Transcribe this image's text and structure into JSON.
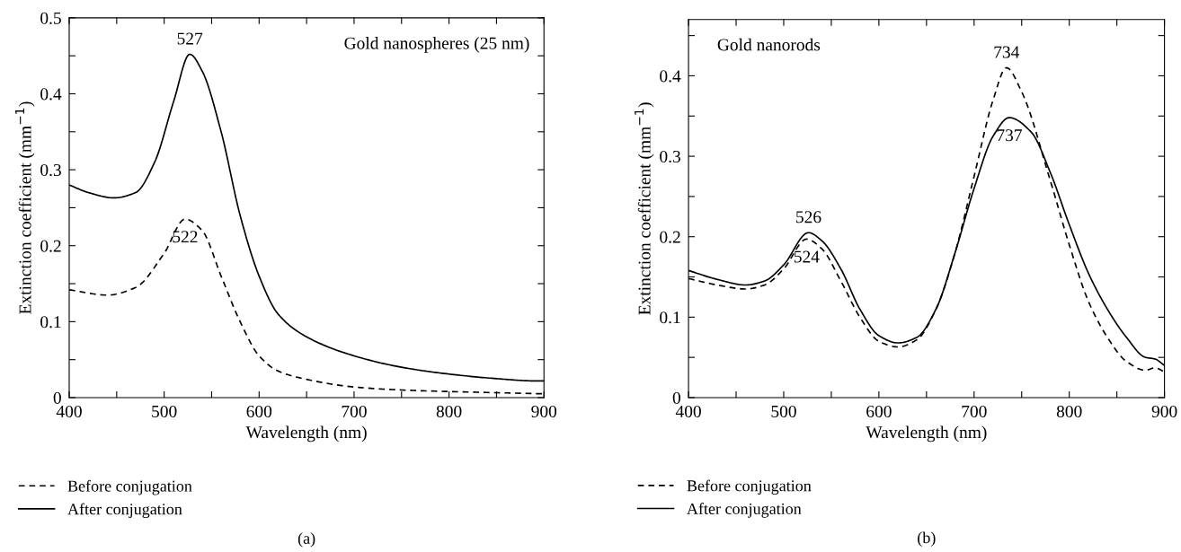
{
  "chart_data": [
    {
      "type": "line",
      "xlabel": "Wavelength (nm)",
      "ylabel": "Extinction coefficient (mm$^{−1}$)",
      "xlim": [
        400,
        900
      ],
      "ylim": [
        0,
        0.5
      ],
      "xticks": [
        400,
        {
          "value": 450,
          "label": null
        },
        500,
        {
          "value": 550,
          "label": null
        },
        600,
        {
          "value": 650,
          "label": null
        },
        700,
        {
          "value": 750,
          "label": null
        },
        800,
        {
          "value": 850,
          "label": null
        },
        900
      ],
      "yticks": [
        0,
        {
          "value": 0.05,
          "label": null
        },
        0.1,
        {
          "value": 0.15,
          "label": null
        },
        0.2,
        {
          "value": 0.25,
          "label": null
        },
        0.3,
        {
          "value": 0.35,
          "label": null
        },
        0.4,
        {
          "value": 0.45,
          "label": null
        },
        0.5
      ],
      "legend": "bottom",
      "grid": false,
      "series": [
        {
          "name": "Before conjugation",
          "color": "#000000",
          "line_style": "dashed",
          "x": [
            400,
            440,
            470,
            500,
            522,
            540,
            560,
            580,
            600,
            620,
            650,
            700,
            750,
            800,
            900
          ],
          "values": [
            0.142,
            0.135,
            0.145,
            0.19,
            0.235,
            0.22,
            0.16,
            0.1,
            0.055,
            0.035,
            0.024,
            0.014,
            0.01,
            0.008,
            0.005
          ]
        },
        {
          "name": "After conjugation",
          "color": "#000000",
          "line_style": "solid",
          "x": [
            400,
            420,
            447,
            470,
            490,
            510,
            527,
            540,
            560,
            580,
            600,
            620,
            650,
            700,
            750,
            800,
            850,
            890,
            900
          ],
          "values": [
            0.28,
            0.27,
            0.263,
            0.27,
            0.31,
            0.39,
            0.452,
            0.43,
            0.35,
            0.24,
            0.16,
            0.11,
            0.08,
            0.055,
            0.04,
            0.031,
            0.025,
            0.022,
            0.022
          ]
        }
      ],
      "annotations": [
        "Gold nanospheres (25 nm)",
        "(a)",
        {
          "text": "527",
          "x": 527,
          "y": 0.452
        },
        {
          "text": "522",
          "x": 522,
          "y": 0.235
        }
      ]
    },
    {
      "type": "line",
      "xlabel": "Wavelength (nm)",
      "ylabel": "Extinction coefficient (mm$^{−1}$)",
      "xlim": [
        400,
        900
      ],
      "ylim": [
        0,
        0.47
      ],
      "xticks": [
        400,
        {
          "value": 450,
          "label": null
        },
        500,
        {
          "value": 550,
          "label": null
        },
        600,
        {
          "value": 650,
          "label": null
        },
        700,
        {
          "value": 750,
          "label": null
        },
        800,
        {
          "value": 850,
          "label": null
        },
        900
      ],
      "yticks": [
        0,
        {
          "value": 0.05,
          "label": null
        },
        0.1,
        {
          "value": 0.15,
          "label": null
        },
        0.2,
        {
          "value": 0.25,
          "label": null
        },
        0.3,
        {
          "value": 0.35,
          "label": null
        },
        0.4,
        {
          "value": 0.45,
          "label": null
        }
      ],
      "legend": "bottom",
      "grid": false,
      "series": [
        {
          "name": "Before conjugation",
          "color": "#000000",
          "line_style": "dashed",
          "x": [
            400,
            430,
            460,
            480,
            500,
            524,
            540,
            560,
            580,
            600,
            620,
            640,
            660,
            680,
            700,
            720,
            734,
            750,
            780,
            800,
            820,
            840,
            860,
            880,
            890,
            900
          ],
          "values": [
            0.148,
            0.14,
            0.135,
            0.14,
            0.16,
            0.197,
            0.185,
            0.145,
            0.1,
            0.07,
            0.063,
            0.072,
            0.11,
            0.18,
            0.275,
            0.37,
            0.41,
            0.38,
            0.27,
            0.19,
            0.12,
            0.075,
            0.045,
            0.034,
            0.037,
            0.032
          ]
        },
        {
          "name": "After conjugation",
          "color": "#000000",
          "line_style": "solid",
          "x": [
            400,
            430,
            460,
            480,
            500,
            526,
            540,
            560,
            580,
            600,
            620,
            640,
            660,
            680,
            700,
            720,
            737,
            760,
            780,
            800,
            820,
            840,
            860,
            880,
            890,
            900
          ],
          "values": [
            0.158,
            0.147,
            0.14,
            0.145,
            0.165,
            0.205,
            0.195,
            0.16,
            0.11,
            0.077,
            0.068,
            0.075,
            0.11,
            0.18,
            0.26,
            0.325,
            0.348,
            0.33,
            0.28,
            0.215,
            0.155,
            0.11,
            0.075,
            0.05,
            0.048,
            0.04
          ]
        }
      ],
      "annotations": [
        "Gold nanorods",
        "(b)",
        {
          "text": "526",
          "x": 526,
          "y": 0.205
        },
        {
          "text": "524",
          "x": 524,
          "y": 0.197
        },
        {
          "text": "734",
          "x": 734,
          "y": 0.41
        },
        {
          "text": "737",
          "x": 737,
          "y": 0.348
        }
      ]
    }
  ]
}
